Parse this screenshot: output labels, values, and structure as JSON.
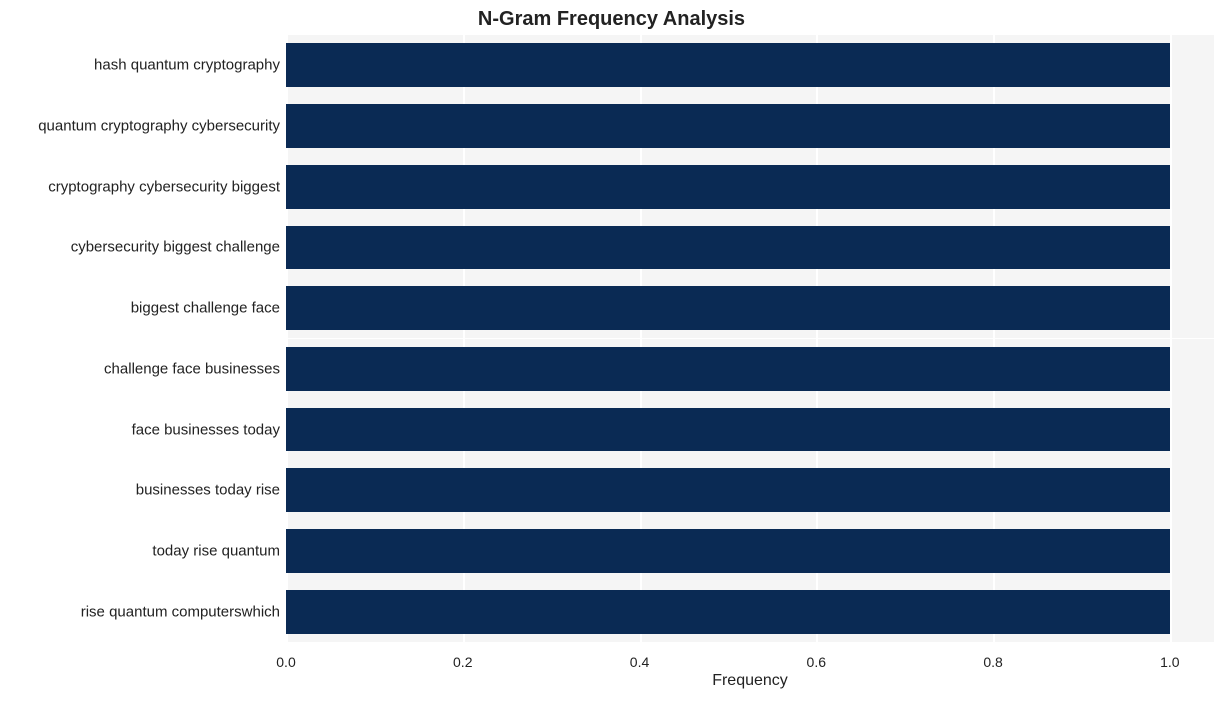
{
  "chart": {
    "type": "bar-horizontal",
    "title": "N-Gram Frequency Analysis",
    "title_fontsize": 20,
    "title_fontweight": 700,
    "background_color": "#ffffff",
    "plot_band_color": "#f5f5f5",
    "grid_color": "#ffffff",
    "grid_line_width": 2,
    "bar_color": "#0a2a54",
    "bar_height_ratio": 0.72,
    "x_axis": {
      "title": "Frequency",
      "title_fontsize": 16,
      "label_fontsize": 14,
      "min": 0.0,
      "max": 1.05,
      "ticks": [
        {
          "value": 0.0,
          "label": "0.0"
        },
        {
          "value": 0.2,
          "label": "0.2"
        },
        {
          "value": 0.4,
          "label": "0.4"
        },
        {
          "value": 0.6,
          "label": "0.6"
        },
        {
          "value": 0.8,
          "label": "0.8"
        },
        {
          "value": 1.0,
          "label": "1.0"
        }
      ]
    },
    "y_axis": {
      "label_fontsize": 15
    },
    "series": [
      {
        "label": "hash quantum cryptography",
        "value": 1.0
      },
      {
        "label": "quantum cryptography cybersecurity",
        "value": 1.0
      },
      {
        "label": "cryptography cybersecurity biggest",
        "value": 1.0
      },
      {
        "label": "cybersecurity biggest challenge",
        "value": 1.0
      },
      {
        "label": "biggest challenge face",
        "value": 1.0
      },
      {
        "label": "challenge face businesses",
        "value": 1.0
      },
      {
        "label": "face businesses today",
        "value": 1.0
      },
      {
        "label": "businesses today rise",
        "value": 1.0
      },
      {
        "label": "today rise quantum",
        "value": 1.0
      },
      {
        "label": "rise quantum computerswhich",
        "value": 1.0
      }
    ]
  }
}
